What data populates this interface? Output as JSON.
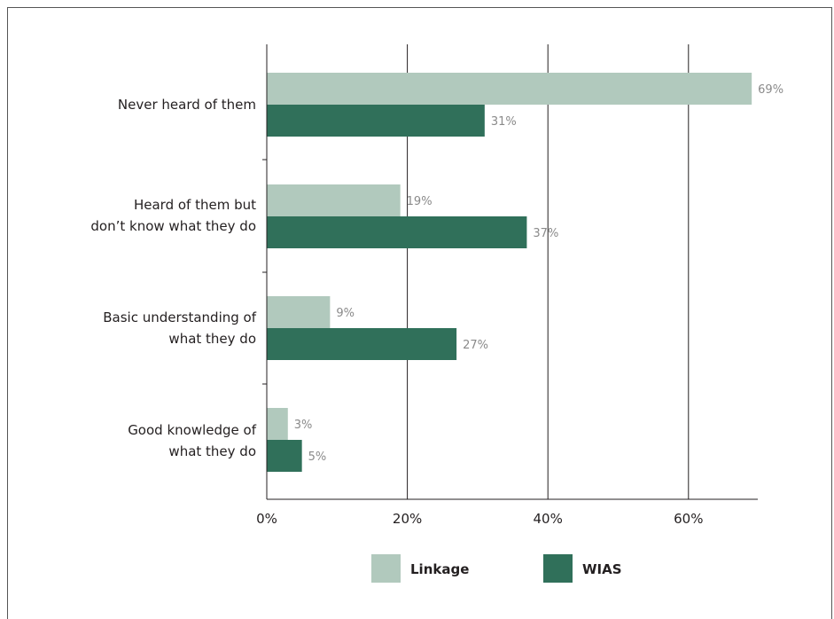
{
  "chart_data": {
    "type": "bar",
    "orientation": "horizontal",
    "categories": [
      [
        "Never heard of them"
      ],
      [
        "Heard of them but",
        "don’t know what they do"
      ],
      [
        "Basic understanding of",
        "what they do"
      ],
      [
        "Good knowledge of",
        "what they do"
      ]
    ],
    "series": [
      {
        "name": "Linkage",
        "color": "#b1c9bd",
        "values": [
          69,
          19,
          9,
          3
        ]
      },
      {
        "name": "WIAS",
        "color": "#30705a",
        "values": [
          31,
          37,
          27,
          5
        ]
      }
    ],
    "value_labels": {
      "Linkage": [
        "69%",
        "19%",
        "9%",
        "3%"
      ],
      "WIAS": [
        "31%",
        "37%",
        "27%",
        "5%"
      ]
    },
    "x_ticks": [
      0,
      20,
      40,
      60
    ],
    "x_tick_labels": [
      "0%",
      "20%",
      "40%",
      "60%"
    ],
    "xlim": [
      0,
      70
    ],
    "grid": "vertical",
    "legend_position": "bottom"
  }
}
